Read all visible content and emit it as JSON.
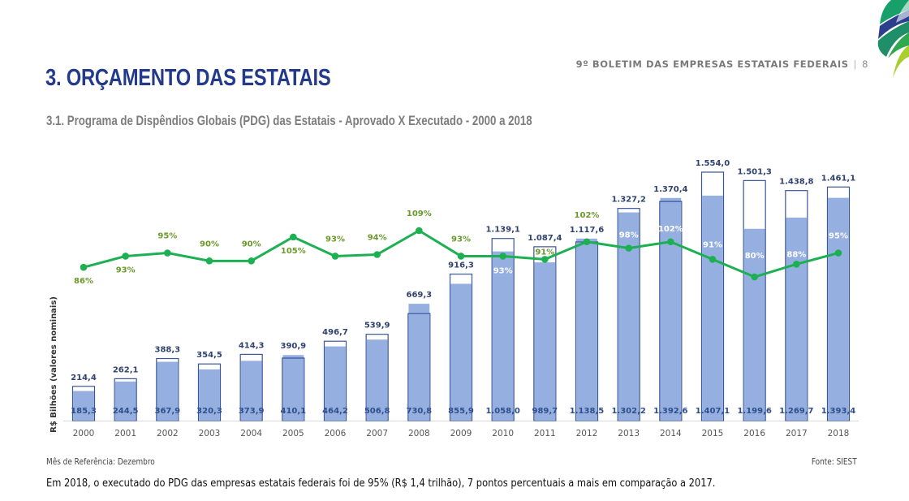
{
  "header": {
    "bulletin": "9º BOLETIM DAS EMPRESAS ESTATAIS FEDERAIS",
    "separator": "|",
    "page_number": "8"
  },
  "page": {
    "title": "3. ORÇAMENTO DAS ESTATAIS",
    "subtitle": "3.1. Programa de Dispêndios Globais (PDG) das Estatais - Aprovado X Executado - 2000 a 2018"
  },
  "colors": {
    "title": "#233a8b",
    "executed_bar": "#95b0e0",
    "approved_bar_outline": "#3a559a",
    "line": "#1db052",
    "pct_label": "#6a9a2a",
    "pct_label_inside": "#ffffff"
  },
  "chart_data": {
    "type": "bar",
    "title": "Programa de Dispêndios Globais (PDG) das Estatais - Aprovado X Executado - 2000 a 2018",
    "xlabel": "",
    "ylabel": "R$ Bilhões (valores nominais)",
    "ylim": [
      0,
      1600
    ],
    "grid": false,
    "categories": [
      "2000",
      "2001",
      "2002",
      "2003",
      "2004",
      "2005",
      "2006",
      "2007",
      "2008",
      "2009",
      "2010",
      "2011",
      "2012",
      "2013",
      "2014",
      "2015",
      "2016",
      "2017",
      "2018"
    ],
    "series": [
      {
        "name": "Aprovado",
        "type": "bar-outline",
        "values": [
          214.4,
          262.1,
          388.3,
          354.5,
          414.3,
          390.9,
          496.7,
          539.9,
          669.3,
          916.3,
          1139.1,
          1087.4,
          1117.6,
          1327.2,
          1370.4,
          1554.0,
          1501.3,
          1438.8,
          1461.1
        ],
        "labels": [
          "214,4",
          "262,1",
          "388,3",
          "354,5",
          "414,3",
          "390,9",
          "496,7",
          "539,9",
          "669,3",
          "916,3",
          "1.139,1",
          "1.087,4",
          "1.117,6",
          "1.327,2",
          "1.370,4",
          "1.554,0",
          "1.501,3",
          "1.438,8",
          "1.461,1"
        ]
      },
      {
        "name": "Executado",
        "type": "bar",
        "values": [
          185.3,
          244.5,
          367.9,
          320.3,
          373.9,
          410.1,
          464.2,
          506.8,
          730.8,
          855.9,
          1058.0,
          989.7,
          1138.5,
          1302.2,
          1392.6,
          1407.1,
          1199.6,
          1269.7,
          1393.4
        ],
        "labels": [
          "185,3",
          "244,5",
          "367,9",
          "320,3",
          "373,9",
          "410,1",
          "464,2",
          "506,8",
          "730,8",
          "855,9",
          "1.058,0",
          "989,7",
          "1.138,5",
          "1.302,2",
          "1.392,6",
          "1.407,1",
          "1.199,6",
          "1.269,7",
          "1.393,4"
        ]
      },
      {
        "name": "% Executado",
        "type": "line",
        "unit": "%",
        "values": [
          86,
          93,
          95,
          90,
          90,
          105,
          93,
          94,
          109,
          93,
          93,
          91,
          102,
          98,
          102,
          91,
          80,
          88,
          95
        ],
        "labels": [
          "86%",
          "93%",
          "95%",
          "90%",
          "90%",
          "105%",
          "93%",
          "94%",
          "109%",
          "93%",
          "93%",
          "91%",
          "102%",
          "98%",
          "102%",
          "91%",
          "80%",
          "88%",
          "95%"
        ]
      }
    ]
  },
  "footer": {
    "reference": "Mês de Referência: Dezembro",
    "source": "Fonte: SIEST"
  },
  "summary": "Em 2018, o executado do PDG das empresas estatais federais foi de 95% (R$ 1,4 trilhão), 7 pontos percentuais a mais em comparação a 2017."
}
